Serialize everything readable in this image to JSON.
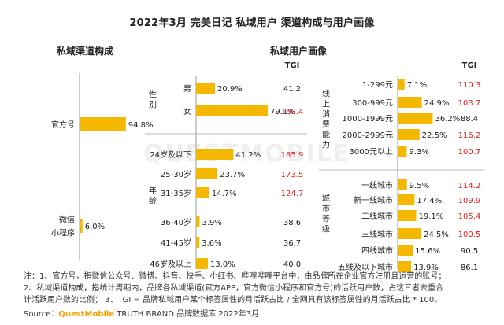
{
  "title": "2022年3月 完美日记 私域用户 渠道构成与用户画像",
  "section_left": "私域渠道构成",
  "section_right": "私域用户画像",
  "watermark": "QUESTMOBILE",
  "notes": [
    "注：1、官方号，指微信公众号、微博、抖音、快手、小红书、哔哩哔哩平台中，由品牌所在企业官方注册且运营的账号；",
    "2、私域渠道构成，指统计周期内，品牌各私域渠道(官方APP，官方微信小程序和官方号)的活跃用户数，占这三者去重合",
    "计活跃用户数的比例；  3、TGI = 品牌私域用户某个标签属性的月活跃占比 / 全网具有该标签属性的月活跃占比 * 100。"
  ],
  "source": {
    "prefix": "Source：",
    "brand": "QuestMobile",
    "suffix": " TRUTH BRAND 品牌数据库 2022年3月"
  },
  "colors": {
    "bar": "#f5b800",
    "tgi_high": "#e02020",
    "tgi_normal": "#222222",
    "axis": "#999999",
    "divider": "#bbbbbb"
  },
  "chart_data": [
    {
      "type": "bar",
      "orientation": "horizontal",
      "title": "私域渠道构成",
      "categories": [
        "官方号",
        "微信小程序"
      ],
      "category_lines": [
        [
          "官方号"
        ],
        [
          "微信",
          "小程序"
        ]
      ],
      "values": [
        94.8,
        6.0
      ],
      "value_labels": [
        "94.8%",
        "6.0%"
      ],
      "unit": "%"
    },
    {
      "type": "bar",
      "orientation": "horizontal",
      "title": "私域用户画像",
      "tgi_header": "TGI",
      "groups": [
        {
          "name": "性别",
          "name_chars": [
            "性",
            "别"
          ],
          "categories": [
            "男",
            "女"
          ],
          "values": [
            20.9,
            79.1
          ],
          "value_labels": [
            "20.9%",
            "79.1%"
          ],
          "tgi": [
            41.2,
            160.4
          ],
          "tgi_labels": [
            "41.2",
            "160.4"
          ]
        },
        {
          "name": "年龄",
          "name_chars": [
            "年",
            "龄"
          ],
          "categories": [
            "24岁及以下",
            "25-30岁",
            "31-35岁",
            "36-40岁",
            "41-45岁",
            "46岁及以上"
          ],
          "values": [
            41.2,
            23.7,
            14.7,
            3.9,
            3.6,
            13.0
          ],
          "value_labels": [
            "41.2%",
            "23.7%",
            "14.7%",
            "3.9%",
            "3.6%",
            "13.0%"
          ],
          "tgi": [
            185.9,
            173.5,
            124.7,
            38.6,
            36.7,
            40.0
          ],
          "tgi_labels": [
            "185.9",
            "173.5",
            "124.7",
            "38.6",
            "36.7",
            "40.0"
          ]
        },
        {
          "name": "线上消费能力",
          "name_chars": [
            "线",
            "上",
            "消",
            "费",
            "能",
            "力"
          ],
          "categories": [
            "1-299元",
            "300-999元",
            "1000-1999元",
            "2000-2999元",
            "3000元以上"
          ],
          "values": [
            7.1,
            24.9,
            36.2,
            22.5,
            9.3
          ],
          "value_labels": [
            "7.1%",
            "24.9%",
            "36.2%",
            "22.5%",
            "9.3%"
          ],
          "tgi": [
            110.3,
            103.7,
            88.4,
            116.2,
            100.7
          ],
          "tgi_labels": [
            "110.3",
            "103.7",
            "88.4",
            "116.2",
            "100.7"
          ]
        },
        {
          "name": "城市等级",
          "name_chars": [
            "城",
            "市",
            "等",
            "级"
          ],
          "categories": [
            "一线城市",
            "新一线城市",
            "二线城市",
            "三线城市",
            "四线城市",
            "五线及以下城市"
          ],
          "values": [
            9.5,
            17.4,
            19.1,
            24.5,
            15.6,
            13.9
          ],
          "value_labels": [
            "9.5%",
            "17.4%",
            "19.1%",
            "24.5%",
            "15.6%",
            "13.9%"
          ],
          "tgi": [
            114.2,
            109.9,
            105.4,
            100.5,
            90.5,
            86.1
          ],
          "tgi_labels": [
            "114.2",
            "109.9",
            "105.4",
            "100.5",
            "90.5",
            "86.1"
          ]
        }
      ]
    }
  ]
}
